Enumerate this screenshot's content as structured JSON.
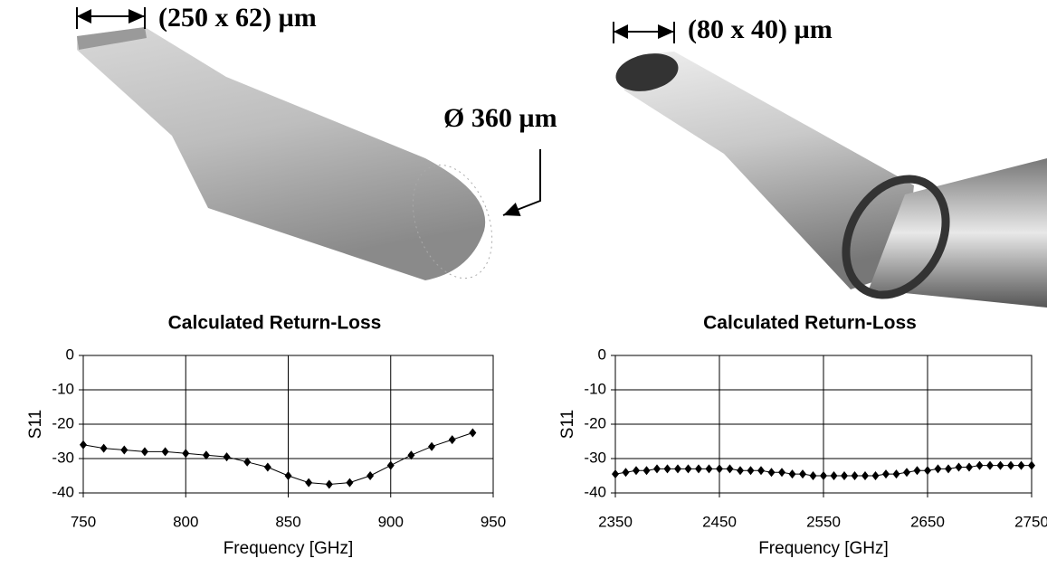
{
  "renders": [
    {
      "labels": [
        "(250 x 62) µm",
        "Ø 360 µm"
      ]
    },
    {
      "labels": [
        "(80 x 40) µm"
      ]
    }
  ],
  "chart_data": [
    {
      "type": "line",
      "title": "Calculated Return-Loss",
      "x_label": "Frequency [GHz]",
      "y_label": "S11",
      "x": [
        750,
        760,
        770,
        780,
        790,
        800,
        810,
        820,
        830,
        840,
        850,
        860,
        870,
        880,
        890,
        900,
        910,
        920,
        930,
        940
      ],
      "series": [
        {
          "color": "#000000",
          "values": [
            -26,
            -27,
            -27.5,
            -28,
            -28,
            -28.5,
            -29,
            -29.5,
            -31,
            -32.5,
            -35,
            -37,
            -37.5,
            -37,
            -35,
            -32,
            -29,
            -26.5,
            -24.5,
            -22.5
          ]
        }
      ],
      "xlim": [
        750,
        950
      ],
      "xticks": [
        750,
        800,
        850,
        900,
        950
      ],
      "ylim": [
        -40,
        0
      ],
      "yticks": [
        0,
        -10,
        -20,
        -30,
        -40
      ],
      "grid": true
    },
    {
      "type": "line",
      "title": "Calculated Return-Loss",
      "x_label": "Frequency [GHz]",
      "y_label": "S11",
      "x": [
        2350,
        2360,
        2370,
        2380,
        2390,
        2400,
        2410,
        2420,
        2430,
        2440,
        2450,
        2460,
        2470,
        2480,
        2490,
        2500,
        2510,
        2520,
        2530,
        2540,
        2550,
        2560,
        2570,
        2580,
        2590,
        2600,
        2610,
        2620,
        2630,
        2640,
        2650,
        2660,
        2670,
        2680,
        2690,
        2700,
        2710,
        2720,
        2730,
        2740,
        2750
      ],
      "series": [
        {
          "color": "#000000",
          "values": [
            -34.5,
            -34,
            -33.5,
            -33.5,
            -33,
            -33,
            -33,
            -33,
            -33,
            -33,
            -33,
            -33,
            -33.5,
            -33.5,
            -33.5,
            -34,
            -34,
            -34.5,
            -34.5,
            -35,
            -35,
            -35,
            -35,
            -35,
            -35,
            -35,
            -34.5,
            -34.5,
            -34,
            -33.5,
            -33.5,
            -33,
            -33,
            -32.5,
            -32.5,
            -32,
            -32,
            -32,
            -32,
            -32,
            -32
          ]
        }
      ],
      "xlim": [
        2350,
        2750
      ],
      "xticks": [
        2350,
        2450,
        2550,
        2650,
        2750
      ],
      "ylim": [
        -40,
        0
      ],
      "yticks": [
        0,
        -10,
        -20,
        -30,
        -40
      ],
      "grid": true
    }
  ]
}
